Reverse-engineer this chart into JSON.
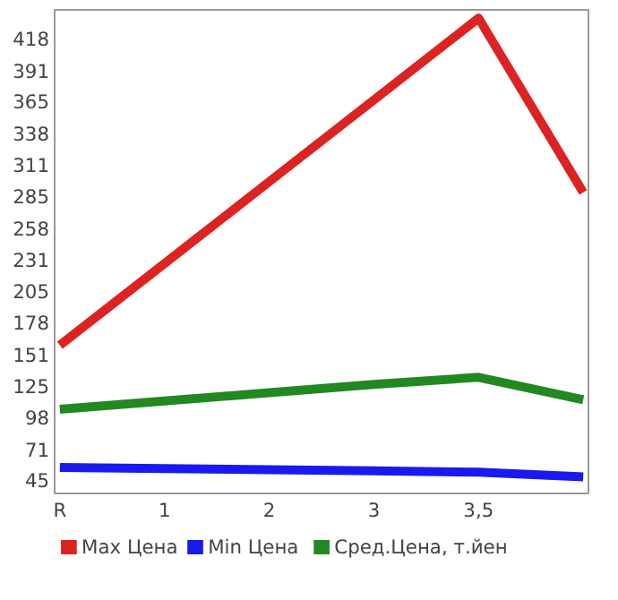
{
  "chart_data": {
    "type": "line",
    "categories": [
      "R",
      "1",
      "2",
      "3",
      "3,5",
      null
    ],
    "series": [
      {
        "name": "Max Цена",
        "color": "#dd2222",
        "values": [
          159,
          228,
          297,
          366,
          435,
          288
        ]
      },
      {
        "name": "Min Цена",
        "color": "#1a1aee",
        "values": [
          56,
          55,
          54,
          53,
          52,
          48
        ]
      },
      {
        "name": "Сред.Цена, т.йен",
        "color": "#228822",
        "values": [
          105,
          112,
          119,
          126,
          132,
          113
        ]
      }
    ],
    "ylim": [
      34,
      442
    ],
    "yticks": [
      45,
      71,
      98,
      125,
      151,
      178,
      205,
      231,
      258,
      285,
      311,
      338,
      365,
      391,
      418
    ],
    "grid": false,
    "legend": "bottom",
    "marker": "none",
    "line_style": "solid"
  }
}
